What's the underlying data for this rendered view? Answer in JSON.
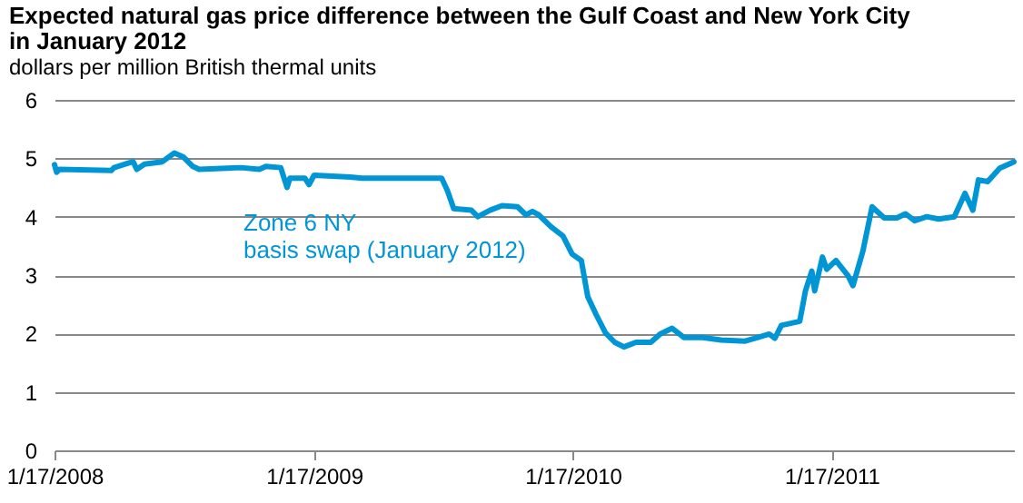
{
  "chart_data": {
    "type": "line",
    "title": "Expected natural gas price difference between the Gulf Coast and New York City in January 2012",
    "ylabel": "dollars per million British thermal units",
    "xlim": [
      "2008-01-17",
      "2011-10-01"
    ],
    "xticks": [
      {
        "value": "2008-01-17",
        "label": "1/17/2008"
      },
      {
        "value": "2009-01-17",
        "label": "1/17/2009"
      },
      {
        "value": "2010-01-17",
        "label": "1/17/2010"
      },
      {
        "value": "2011-01-17",
        "label": "1/17/2011"
      }
    ],
    "ylim": [
      0,
      6
    ],
    "yticks": [
      0,
      1,
      2,
      3,
      4,
      5,
      6
    ],
    "grid": "y",
    "legend": false,
    "line_style": "solid",
    "x": [
      "2008-01-17",
      "2008-01-20",
      "2008-01-24",
      "2008-04-06",
      "2008-04-10",
      "2008-05-01",
      "2008-05-07",
      "2008-05-12",
      "2008-05-23",
      "2008-06-17",
      "2008-07-04",
      "2008-07-17",
      "2008-07-30",
      "2008-08-08",
      "2008-10-06",
      "2008-11-01",
      "2008-11-10",
      "2008-12-01",
      "2008-12-10",
      "2008-12-14",
      "2009-01-04",
      "2009-01-10",
      "2009-01-17",
      "2009-03-09",
      "2009-03-26",
      "2009-07-16",
      "2009-07-24",
      "2009-08-02",
      "2009-08-27",
      "2009-09-05",
      "2009-09-22",
      "2009-10-09",
      "2009-10-31",
      "2009-11-12",
      "2009-11-21",
      "2009-11-30",
      "2009-12-17",
      "2010-01-03",
      "2010-01-16",
      "2010-01-29",
      "2010-02-07",
      "2010-02-19",
      "2010-03-04",
      "2010-03-17",
      "2010-03-30",
      "2010-04-16",
      "2010-05-07",
      "2010-05-20",
      "2010-06-06",
      "2010-06-23",
      "2010-07-19",
      "2010-08-14",
      "2010-09-17",
      "2010-10-04",
      "2010-10-21",
      "2010-10-29",
      "2010-11-07",
      "2010-12-03",
      "2010-12-11",
      "2010-12-20",
      "2010-12-24",
      "2011-01-04",
      "2011-01-10",
      "2011-01-23",
      "2011-02-09",
      "2011-02-16",
      "2011-03-02",
      "2011-03-15",
      "2011-04-01",
      "2011-04-19",
      "2011-05-01",
      "2011-05-14",
      "2011-05-31",
      "2011-06-17",
      "2011-07-09",
      "2011-07-24",
      "2011-08-04",
      "2011-08-12",
      "2011-08-25",
      "2011-09-11",
      "2011-09-24",
      "2011-10-01"
    ],
    "series": [
      {
        "name": "Zone 6 NY basis swap (January 2012)",
        "color": "#0096d6",
        "values": [
          4.89,
          4.76,
          4.81,
          4.79,
          4.84,
          4.92,
          4.94,
          4.81,
          4.9,
          4.94,
          5.09,
          5.02,
          4.86,
          4.81,
          4.84,
          4.81,
          4.86,
          4.84,
          4.5,
          4.66,
          4.66,
          4.55,
          4.71,
          4.68,
          4.66,
          4.66,
          4.45,
          4.14,
          4.11,
          4.0,
          4.11,
          4.19,
          4.17,
          4.03,
          4.09,
          4.03,
          3.83,
          3.67,
          3.36,
          3.25,
          2.63,
          2.32,
          2.01,
          1.85,
          1.77,
          1.85,
          1.85,
          1.99,
          2.09,
          1.93,
          1.93,
          1.89,
          1.87,
          1.93,
          1.99,
          1.92,
          2.14,
          2.21,
          2.73,
          3.07,
          2.73,
          3.31,
          3.1,
          3.25,
          2.99,
          2.82,
          3.41,
          4.17,
          3.98,
          3.98,
          4.05,
          3.93,
          4.0,
          3.96,
          4.0,
          4.4,
          4.11,
          4.63,
          4.6,
          4.83,
          4.9,
          4.94
        ]
      }
    ]
  }
}
